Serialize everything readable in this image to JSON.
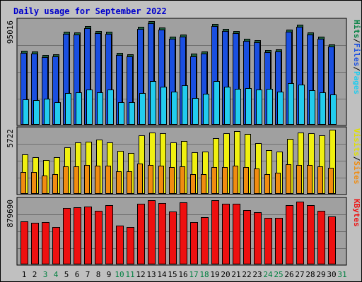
{
  "title": "Daily usage for September 2022",
  "colors": {
    "background": "#c0c0c0",
    "panel": "#a0a0a0",
    "hits": "#1f5f3f",
    "files": "#1a4fe0",
    "pages": "#22ccee",
    "visits": "#f0f010",
    "sites": "#f08c10",
    "kbf": "#ee1010",
    "title_text": "#0000cc",
    "dark_day_label": "#000000",
    "green_day_label": "#008040"
  },
  "chart_data": {
    "type": "bar",
    "categories": [
      "1",
      "2",
      "3",
      "4",
      "5",
      "6",
      "7",
      "8",
      "9",
      "10",
      "11",
      "12",
      "13",
      "14",
      "15",
      "16",
      "17",
      "18",
      "19",
      "20",
      "21",
      "22",
      "23",
      "24",
      "25",
      "26",
      "27",
      "28",
      "29",
      "30",
      "31"
    ],
    "weekend_days": [
      "3",
      "4",
      "10",
      "11",
      "17",
      "18",
      "24",
      "25",
      "31"
    ],
    "panels": [
      {
        "id": "top",
        "y_tick_label": "95016",
        "y_max": 95016,
        "legend": [
          {
            "text": "Hits",
            "color": "#008040"
          },
          {
            "text": "/",
            "color": "#000000"
          },
          {
            "text": "Files",
            "color": "#1a4fe0"
          },
          {
            "text": "/",
            "color": "#000000"
          },
          {
            "text": "Pages",
            "color": "#22ccee"
          }
        ],
        "series": [
          {
            "name": "Hits",
            "color": "#1f5f3f",
            "values": [
              67500,
              66900,
              63500,
              64500,
              85500,
              84800,
              90300,
              85800,
              85200,
              66000,
              64300,
              89900,
              95016,
              89200,
              80600,
              82900,
              64800,
              66800,
              92400,
              87600,
              85800,
              78900,
              77400,
              68300,
              69300,
              87300,
              91600,
              84300,
              80900,
              73800,
              0
            ]
          },
          {
            "name": "Files",
            "color": "#1a4fe0",
            "values": [
              65500,
              65000,
              61600,
              62600,
              83600,
              82900,
              88400,
              83900,
              83200,
              64000,
              62400,
              88000,
              93000,
              87300,
              78700,
              81000,
              62800,
              64900,
              90500,
              85600,
              83900,
              76900,
              75400,
              66400,
              67300,
              85300,
              89700,
              82400,
              78900,
              71800,
              0
            ]
          },
          {
            "name": "Pages",
            "color": "#22ccee",
            "values": [
              22700,
              22300,
              23600,
              20200,
              28600,
              29000,
              32200,
              29500,
              31900,
              20400,
              19900,
              28800,
              39600,
              34200,
              29900,
              35700,
              24400,
              27800,
              39500,
              34300,
              32600,
              32900,
              32200,
              32500,
              29800,
              37800,
              36400,
              31300,
              29100,
              27100,
              0
            ]
          }
        ]
      },
      {
        "id": "middle",
        "y_tick_label": "5722",
        "y_max": 5722,
        "legend": [
          {
            "text": "Visits",
            "color": "#e0e000"
          },
          {
            "text": "/",
            "color": "#000000"
          },
          {
            "text": "Sites",
            "color": "#f08c10"
          }
        ],
        "series": [
          {
            "name": "Visits",
            "color": "#f0f010",
            "values": [
              3480,
              3220,
              2980,
              3250,
              4160,
              4580,
              4650,
              4830,
              4600,
              3800,
              3600,
              5190,
              5460,
              5430,
              4600,
              4690,
              3700,
              3780,
              4950,
              5420,
              5620,
              5310,
              4520,
              3850,
              3780,
              4920,
              5460,
              5430,
              5220,
              5720,
              0
            ]
          },
          {
            "name": "Sites",
            "color": "#f08c10",
            "values": [
              1930,
              1900,
              1590,
              1710,
              2390,
              2420,
              2530,
              2480,
              2480,
              1950,
              1970,
              2640,
              2560,
              2450,
              2340,
              2410,
              1720,
              1700,
              2340,
              2380,
              2510,
              2360,
              2230,
              1730,
              1820,
              2590,
              2570,
              2540,
              2420,
              2310,
              0
            ]
          }
        ]
      },
      {
        "id": "bottom",
        "y_tick_label": "879690",
        "y_max": 879690,
        "legend": [
          {
            "text": "KBytes",
            "color": "#ee1010"
          }
        ],
        "series": [
          {
            "name": "KBytes",
            "color": "#ee1010",
            "values": [
              590000,
              571000,
              579000,
              511000,
              768000,
              781000,
              793000,
              730000,
              811000,
              531000,
              512000,
              826000,
              879690,
              844000,
              727000,
              850000,
              577000,
              641000,
              875000,
              827000,
              832000,
              738000,
              714000,
              633000,
              633000,
              815000,
              863000,
              807000,
              729000,
              658000,
              0
            ]
          }
        ]
      }
    ]
  }
}
